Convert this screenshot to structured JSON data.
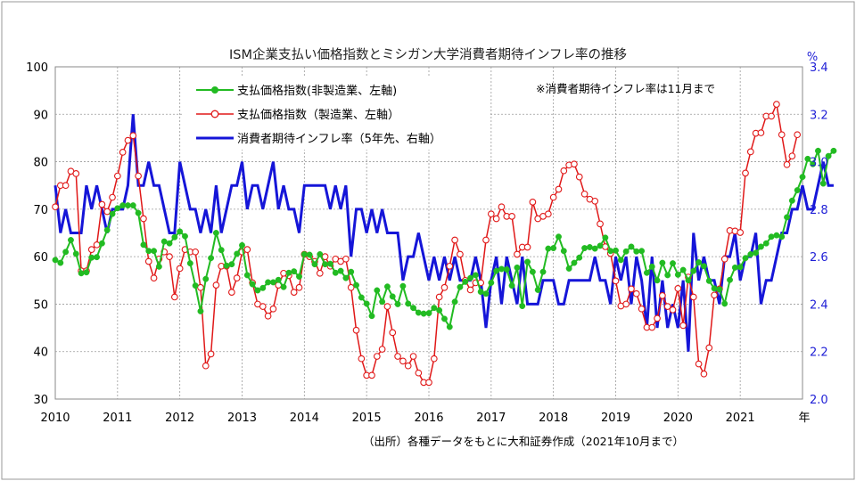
{
  "chart_data": {
    "type": "line",
    "title": "ISM企業支払い価格指数とミシガン大学消費者期待インフレ率の推移",
    "note": "※消費者期待インフレ率は11月まで",
    "source": "（出所）各種データをもとに大和証券作成（2021年10月まで）",
    "x_unit_label": "年",
    "y_right_unit": "%",
    "x_ticks": [
      "2010",
      "2011",
      "2012",
      "2013",
      "2014",
      "2015",
      "2016",
      "2017",
      "2018",
      "2019",
      "2020",
      "2021"
    ],
    "x_range": [
      2010.0,
      2022.0
    ],
    "ylim_left": [
      30,
      100
    ],
    "yticks_left": [
      "30",
      "40",
      "50",
      "60",
      "70",
      "80",
      "90",
      "100"
    ],
    "ylim_right": [
      2.0,
      3.4
    ],
    "yticks_right": [
      "2.0",
      "2.2",
      "2.4",
      "2.6",
      "2.8",
      "3.0",
      "3.2",
      "3.4"
    ],
    "grid": true,
    "legend_position": "top-left",
    "colors": {
      "services": "#22bb22",
      "manufacturing": "#e01818",
      "expectations": "#1515d8"
    },
    "series": [
      {
        "name": "支払価格指数(非製造業、左軸)",
        "key": "services",
        "axis": "left",
        "start": "2010-01",
        "values": [
          59.3,
          58.7,
          61.0,
          63.5,
          60.6,
          56.5,
          56.7,
          59.8,
          59.9,
          62.8,
          65.6,
          69.0,
          70.2,
          70.8,
          70.8,
          70.8,
          69.2,
          62.5,
          61.2,
          61.2,
          57.9,
          63.2,
          62.8,
          64.1,
          65.3,
          64.3,
          58.6,
          53.9,
          48.5,
          55.3,
          59.7,
          65.0,
          61.4,
          58.1,
          58.4,
          60.6,
          62.4,
          56.1,
          54.2,
          52.9,
          53.4,
          54.6,
          54.6,
          55.1,
          53.6,
          56.6,
          56.9,
          55.8,
          60.5,
          60.4,
          58.4,
          60.5,
          58.4,
          58.5,
          56.6,
          57.0,
          55.5,
          56.8,
          54.0,
          51.4,
          50.1,
          47.5,
          52.9,
          50.5,
          53.7,
          51.6,
          50.0,
          53.8,
          50.1,
          49.2,
          48.2,
          48.0,
          48.1,
          49.2,
          48.7,
          46.9,
          45.2,
          50.5,
          53.6,
          54.7,
          55.5,
          56.1,
          52.6,
          52.2,
          54.5,
          57.0,
          57.4,
          57.3,
          53.9,
          57.7,
          49.6,
          58.9,
          56.8,
          53.0,
          56.8,
          61.7,
          61.8,
          64.2,
          61.2,
          57.5,
          58.7,
          59.8,
          61.8,
          62.0,
          61.7,
          62.3,
          64.0,
          61.2,
          61.3,
          59.3,
          61.1,
          62.1,
          61.1,
          61.2,
          56.6,
          57.9,
          55.0,
          58.7,
          56.1,
          58.6,
          56.2,
          57.2,
          55.0,
          57.0,
          58.8,
          58.0,
          54.9,
          53.3,
          53.1,
          50.1,
          55.1,
          57.7,
          57.8,
          59.7,
          60.5,
          60.8,
          62.1,
          62.8,
          64.2,
          64.5,
          64.2,
          68.3,
          71.8,
          74.0,
          76.8,
          80.6,
          79.5,
          82.3,
          75.4,
          81.2,
          82.3
        ]
      },
      {
        "name": "支払価格指数（製造業、左軸）",
        "key": "manufacturing",
        "axis": "left",
        "start": "2010-01",
        "values": [
          70.5,
          75.0,
          75.0,
          78.0,
          77.5,
          57.0,
          57.0,
          61.5,
          62.5,
          71.0,
          69.5,
          72.5,
          77.0,
          82.0,
          84.5,
          85.5,
          77.0,
          68.0,
          59.0,
          55.5,
          59.5,
          61.0,
          60.0,
          51.5,
          57.5,
          61.5,
          61.0,
          61.0,
          53.5,
          37.0,
          39.5,
          54.0,
          58.0,
          58.0,
          52.5,
          55.5,
          61.0,
          61.5,
          54.5,
          50.0,
          49.5,
          47.5,
          49.0,
          54.0,
          56.5,
          56.0,
          52.5,
          53.5,
          60.5,
          60.0,
          59.0,
          56.5,
          60.0,
          58.0,
          59.5,
          59.0,
          59.5,
          53.5,
          44.5,
          38.5,
          35.0,
          35.0,
          39.0,
          40.5,
          49.5,
          44.0,
          39.0,
          38.0,
          37.0,
          39.0,
          35.5,
          33.5,
          33.5,
          38.5,
          51.5,
          53.5,
          58.0,
          63.5,
          60.5,
          55.0,
          53.0,
          54.5,
          54.5,
          63.5,
          69.0,
          68.0,
          70.5,
          68.5,
          68.5,
          60.5,
          62.0,
          62.0,
          71.5,
          68.0,
          68.5,
          69.0,
          72.5,
          74.2,
          78.1,
          79.3,
          79.5,
          76.8,
          73.2,
          72.1,
          71.7,
          66.9,
          62.1,
          60.7,
          54.9,
          49.6,
          50.0,
          53.2,
          52.2,
          49.0,
          45.1,
          45.1,
          47.0,
          51.8,
          49.5,
          48.8,
          53.3,
          45.5,
          55.7,
          51.5,
          37.4,
          35.3,
          40.8,
          51.9,
          53.2,
          59.5,
          65.5,
          65.4,
          65.1,
          77.6,
          82.1,
          86.0,
          86.1,
          89.6,
          89.6,
          92.1,
          85.7,
          79.4,
          81.2,
          85.7
        ]
      },
      {
        "name": "消費者期待インフレ率（5年先、右軸）",
        "key": "expectations",
        "axis": "right",
        "start": "2010-01",
        "values": [
          2.9,
          2.7,
          2.8,
          2.7,
          2.7,
          2.7,
          2.9,
          2.8,
          2.9,
          2.8,
          2.7,
          2.8,
          2.8,
          2.8,
          2.9,
          3.2,
          2.9,
          2.9,
          3.0,
          2.9,
          2.9,
          2.8,
          2.7,
          2.7,
          3.0,
          2.9,
          2.8,
          2.8,
          2.7,
          2.8,
          2.7,
          2.9,
          2.7,
          2.8,
          2.9,
          2.9,
          3.0,
          2.8,
          2.9,
          2.9,
          2.8,
          2.9,
          3.0,
          2.8,
          2.9,
          2.8,
          2.8,
          2.7,
          2.9,
          2.9,
          2.9,
          2.9,
          2.9,
          2.8,
          2.9,
          2.8,
          2.9,
          2.6,
          2.8,
          2.8,
          2.7,
          2.8,
          2.7,
          2.8,
          2.7,
          2.7,
          2.7,
          2.5,
          2.6,
          2.6,
          2.7,
          2.6,
          2.5,
          2.6,
          2.5,
          2.6,
          2.5,
          2.6,
          2.5,
          2.5,
          2.5,
          2.6,
          2.5,
          2.3,
          2.5,
          2.6,
          2.4,
          2.6,
          2.5,
          2.4,
          2.6,
          2.4,
          2.4,
          2.4,
          2.5,
          2.5,
          2.5,
          2.4,
          2.4,
          2.5,
          2.5,
          2.5,
          2.5,
          2.5,
          2.6,
          2.5,
          2.5,
          2.4,
          2.6,
          2.5,
          2.6,
          2.4,
          2.6,
          2.5,
          2.3,
          2.6,
          2.3,
          2.5,
          2.3,
          2.4,
          2.3,
          2.5,
          2.2,
          2.7,
          2.5,
          2.6,
          2.5,
          2.5,
          2.4,
          2.6,
          2.6,
          2.7,
          2.5,
          2.6,
          2.6,
          2.7,
          2.4,
          2.5,
          2.5,
          2.6,
          2.7,
          2.7,
          2.8,
          2.8,
          2.9,
          2.8,
          2.8,
          2.9,
          3.0,
          2.9,
          2.9
        ]
      }
    ]
  }
}
